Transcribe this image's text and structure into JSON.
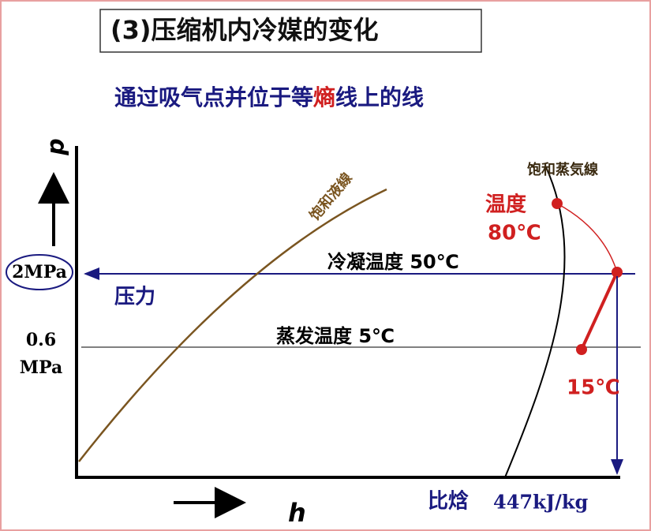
{
  "title": "(3)压缩机内冷媒的变化",
  "subtitle": {
    "parts": [
      "通过吸气点并位于等",
      "熵",
      "线上的线"
    ]
  },
  "axes": {
    "y_label": "p",
    "x_label": "h"
  },
  "curves": {
    "saturated_liquid": "饱和液線",
    "saturated_vapor": "饱和蒸気線"
  },
  "pressure": {
    "high": "2MPa",
    "label": "压力",
    "low_value": "0.6",
    "low_unit": "MPa"
  },
  "isotherms": {
    "condensing": "冷凝温度  50℃",
    "evaporating": "蒸发温度  5℃"
  },
  "points": {
    "temperature_label": "温度",
    "discharge_temp": "80℃",
    "suction_temp": "15℃"
  },
  "enthalpy": {
    "label": "比焓",
    "value": "447kJ/kg"
  }
}
